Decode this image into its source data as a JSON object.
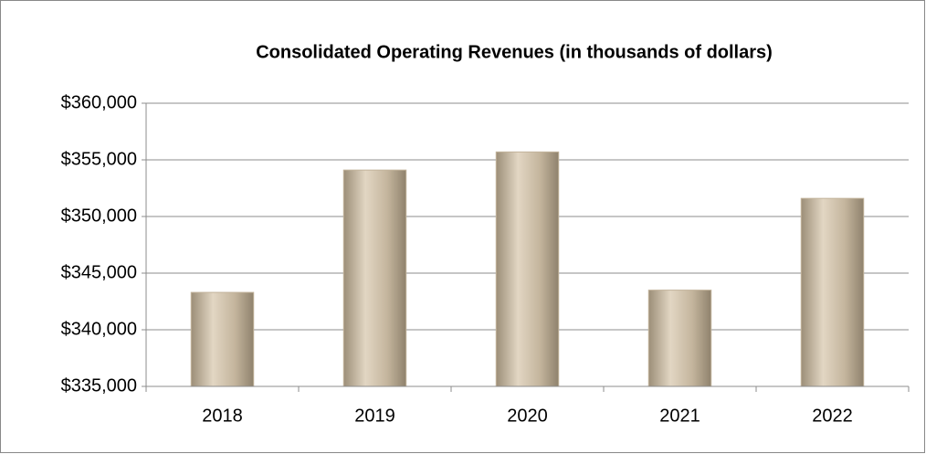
{
  "chart_data": {
    "type": "bar",
    "title": "Consolidated Operating Revenues (in thousands of dollars)",
    "categories": [
      "2018",
      "2019",
      "2020",
      "2021",
      "2022"
    ],
    "values": [
      343300,
      354100,
      355700,
      343500,
      351600
    ],
    "color": "#c2b39b",
    "ylim": [
      335000,
      360000
    ],
    "yticks": [
      {
        "value": 335000,
        "label": "$335,000"
      },
      {
        "value": 340000,
        "label": "$340,000"
      },
      {
        "value": 345000,
        "label": "$345,000"
      },
      {
        "value": 350000,
        "label": "$350,000"
      },
      {
        "value": 355000,
        "label": "$355,000"
      },
      {
        "value": 360000,
        "label": "$360,000"
      }
    ],
    "grid": true
  }
}
